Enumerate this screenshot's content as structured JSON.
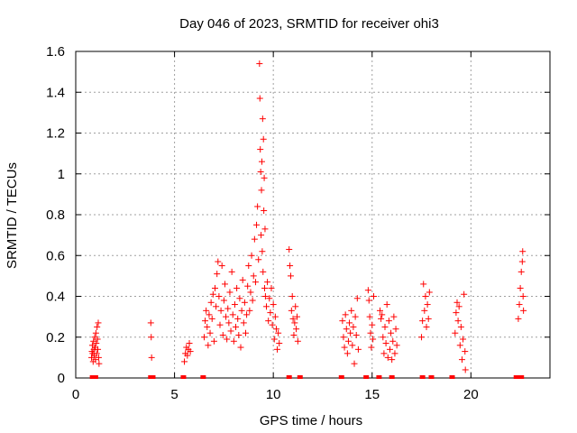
{
  "chart_data": {
    "type": "scatter",
    "title": "Day 046 of 2023, SRMTID for receiver ohi3",
    "xlabel": "GPS time / hours",
    "ylabel": "SRMTID / TECUs",
    "xlim": [
      0,
      24
    ],
    "ylim": [
      0,
      1.6
    ],
    "x_ticks": [
      0,
      5,
      10,
      15,
      20
    ],
    "x_tick_labels": [
      "0",
      "5",
      "10",
      "15",
      "20"
    ],
    "y_ticks": [
      0,
      0.2,
      0.4,
      0.6,
      0.8,
      1,
      1.2,
      1.4,
      1.6
    ],
    "y_tick_labels": [
      "0",
      "0.2",
      "0.4",
      "0.6",
      "0.8",
      "1",
      "1.2",
      "1.4",
      "1.6"
    ],
    "grid": true,
    "marker_color": "#ff0000",
    "series": [
      {
        "name": "SRMTID",
        "marker": "plus",
        "points": [
          [
            0.8,
            0.1
          ],
          [
            0.82,
            0.13
          ],
          [
            0.84,
            0.16
          ],
          [
            0.86,
            0.12
          ],
          [
            0.88,
            0.08
          ],
          [
            0.9,
            0.18
          ],
          [
            0.92,
            0.14
          ],
          [
            0.94,
            0.11
          ],
          [
            0.96,
            0.2
          ],
          [
            0.98,
            0.15
          ],
          [
            1.0,
            0.09
          ],
          [
            1.02,
            0.22
          ],
          [
            1.04,
            0.17
          ],
          [
            1.06,
            0.12
          ],
          [
            1.08,
            0.25
          ],
          [
            1.1,
            0.19
          ],
          [
            1.12,
            0.14
          ],
          [
            1.14,
            0.27
          ],
          [
            1.16,
            0.1
          ],
          [
            1.18,
            0.07
          ],
          [
            3.8,
            0.27
          ],
          [
            3.82,
            0.2
          ],
          [
            3.84,
            0.1
          ],
          [
            5.5,
            0.08
          ],
          [
            5.55,
            0.12
          ],
          [
            5.6,
            0.15
          ],
          [
            5.65,
            0.11
          ],
          [
            5.7,
            0.14
          ],
          [
            5.75,
            0.17
          ],
          [
            5.8,
            0.13
          ],
          [
            6.5,
            0.2
          ],
          [
            6.55,
            0.28
          ],
          [
            6.6,
            0.33
          ],
          [
            6.65,
            0.25
          ],
          [
            6.7,
            0.16
          ],
          [
            6.75,
            0.31
          ],
          [
            6.8,
            0.22
          ],
          [
            6.85,
            0.37
          ],
          [
            6.9,
            0.29
          ],
          [
            6.95,
            0.41
          ],
          [
            7.0,
            0.18
          ],
          [
            7.05,
            0.44
          ],
          [
            7.1,
            0.35
          ],
          [
            7.15,
            0.51
          ],
          [
            7.2,
            0.57
          ],
          [
            7.25,
            0.4
          ],
          [
            7.3,
            0.26
          ],
          [
            7.35,
            0.33
          ],
          [
            7.4,
            0.55
          ],
          [
            7.45,
            0.21
          ],
          [
            7.5,
            0.38
          ],
          [
            7.55,
            0.46
          ],
          [
            7.6,
            0.3
          ],
          [
            7.65,
            0.19
          ],
          [
            7.7,
            0.34
          ],
          [
            7.75,
            0.27
          ],
          [
            7.8,
            0.42
          ],
          [
            7.85,
            0.23
          ],
          [
            7.9,
            0.52
          ],
          [
            7.95,
            0.31
          ],
          [
            8.0,
            0.18
          ],
          [
            8.05,
            0.36
          ],
          [
            8.1,
            0.25
          ],
          [
            8.15,
            0.44
          ],
          [
            8.2,
            0.29
          ],
          [
            8.25,
            0.21
          ],
          [
            8.3,
            0.39
          ],
          [
            8.35,
            0.15
          ],
          [
            8.4,
            0.33
          ],
          [
            8.45,
            0.48
          ],
          [
            8.5,
            0.27
          ],
          [
            8.55,
            0.37
          ],
          [
            8.6,
            0.22
          ],
          [
            8.65,
            0.31
          ],
          [
            8.7,
            0.45
          ],
          [
            8.75,
            0.55
          ],
          [
            8.8,
            0.33
          ],
          [
            8.85,
            0.42
          ],
          [
            8.9,
            0.6
          ],
          [
            8.95,
            0.38
          ],
          [
            9.0,
            0.5
          ],
          [
            9.05,
            0.68
          ],
          [
            9.1,
            0.47
          ],
          [
            9.15,
            0.75
          ],
          [
            9.2,
            0.84
          ],
          [
            9.25,
            0.58
          ],
          [
            9.3,
            1.54
          ],
          [
            9.32,
            1.37
          ],
          [
            9.34,
            1.12
          ],
          [
            9.36,
            1.01
          ],
          [
            9.38,
            0.7
          ],
          [
            9.4,
            0.92
          ],
          [
            9.42,
            1.06
          ],
          [
            9.44,
            0.62
          ],
          [
            9.46,
            1.27
          ],
          [
            9.48,
            0.52
          ],
          [
            9.5,
            1.17
          ],
          [
            9.52,
            0.82
          ],
          [
            9.54,
            0.98
          ],
          [
            9.56,
            0.44
          ],
          [
            9.58,
            0.73
          ],
          [
            9.6,
            0.4
          ],
          [
            9.65,
            0.35
          ],
          [
            9.7,
            0.47
          ],
          [
            9.75,
            0.28
          ],
          [
            9.8,
            0.39
          ],
          [
            9.85,
            0.32
          ],
          [
            9.9,
            0.44
          ],
          [
            9.95,
            0.26
          ],
          [
            10.0,
            0.36
          ],
          [
            10.05,
            0.19
          ],
          [
            10.1,
            0.3
          ],
          [
            10.15,
            0.24
          ],
          [
            10.2,
            0.14
          ],
          [
            10.25,
            0.22
          ],
          [
            10.3,
            0.17
          ],
          [
            10.8,
            0.63
          ],
          [
            10.84,
            0.55
          ],
          [
            10.88,
            0.5
          ],
          [
            10.92,
            0.33
          ],
          [
            10.96,
            0.4
          ],
          [
            11.0,
            0.29
          ],
          [
            11.04,
            0.21
          ],
          [
            11.08,
            0.27
          ],
          [
            11.12,
            0.35
          ],
          [
            11.16,
            0.24
          ],
          [
            11.2,
            0.3
          ],
          [
            11.24,
            0.18
          ],
          [
            13.5,
            0.28
          ],
          [
            13.55,
            0.2
          ],
          [
            13.6,
            0.15
          ],
          [
            13.65,
            0.31
          ],
          [
            13.7,
            0.24
          ],
          [
            13.75,
            0.12
          ],
          [
            13.8,
            0.18
          ],
          [
            13.85,
            0.27
          ],
          [
            13.9,
            0.22
          ],
          [
            13.95,
            0.33
          ],
          [
            14.0,
            0.16
          ],
          [
            14.05,
            0.25
          ],
          [
            14.1,
            0.07
          ],
          [
            14.15,
            0.3
          ],
          [
            14.2,
            0.21
          ],
          [
            14.25,
            0.39
          ],
          [
            14.3,
            0.14
          ],
          [
            14.8,
            0.43
          ],
          [
            14.84,
            0.38
          ],
          [
            14.88,
            0.3
          ],
          [
            14.92,
            0.22
          ],
          [
            14.96,
            0.15
          ],
          [
            15.0,
            0.26
          ],
          [
            15.04,
            0.19
          ],
          [
            15.08,
            0.4
          ],
          [
            15.4,
            0.33
          ],
          [
            15.45,
            0.29
          ],
          [
            15.5,
            0.31
          ],
          [
            15.55,
            0.2
          ],
          [
            15.6,
            0.12
          ],
          [
            15.65,
            0.25
          ],
          [
            15.7,
            0.17
          ],
          [
            15.75,
            0.36
          ],
          [
            15.8,
            0.1
          ],
          [
            15.85,
            0.28
          ],
          [
            15.9,
            0.14
          ],
          [
            15.95,
            0.22
          ],
          [
            16.0,
            0.09
          ],
          [
            16.05,
            0.18
          ],
          [
            16.1,
            0.3
          ],
          [
            16.15,
            0.12
          ],
          [
            16.2,
            0.24
          ],
          [
            16.25,
            0.16
          ],
          [
            17.5,
            0.2
          ],
          [
            17.55,
            0.28
          ],
          [
            17.6,
            0.46
          ],
          [
            17.65,
            0.33
          ],
          [
            17.7,
            0.4
          ],
          [
            17.75,
            0.25
          ],
          [
            17.8,
            0.36
          ],
          [
            17.85,
            0.29
          ],
          [
            17.9,
            0.42
          ],
          [
            19.2,
            0.22
          ],
          [
            19.25,
            0.32
          ],
          [
            19.3,
            0.37
          ],
          [
            19.35,
            0.28
          ],
          [
            19.4,
            0.35
          ],
          [
            19.45,
            0.16
          ],
          [
            19.5,
            0.25
          ],
          [
            19.55,
            0.09
          ],
          [
            19.6,
            0.19
          ],
          [
            19.65,
            0.41
          ],
          [
            19.7,
            0.13
          ],
          [
            19.72,
            0.04
          ],
          [
            22.4,
            0.29
          ],
          [
            22.45,
            0.36
          ],
          [
            22.5,
            0.44
          ],
          [
            22.55,
            0.52
          ],
          [
            22.6,
            0.57
          ],
          [
            22.62,
            0.62
          ],
          [
            22.64,
            0.4
          ],
          [
            22.66,
            0.33
          ]
        ]
      }
    ],
    "zero_markers": [
      [
        0.85,
        0
      ],
      [
        1.0,
        0
      ],
      [
        3.8,
        0
      ],
      [
        3.9,
        0
      ],
      [
        5.45,
        0
      ],
      [
        6.45,
        0
      ],
      [
        10.8,
        0
      ],
      [
        11.35,
        0
      ],
      [
        13.45,
        0
      ],
      [
        14.7,
        0
      ],
      [
        15.35,
        0
      ],
      [
        16.0,
        0
      ],
      [
        17.55,
        0
      ],
      [
        18.0,
        0
      ],
      [
        19.05,
        0
      ],
      [
        22.3,
        0
      ],
      [
        22.55,
        0
      ]
    ]
  }
}
